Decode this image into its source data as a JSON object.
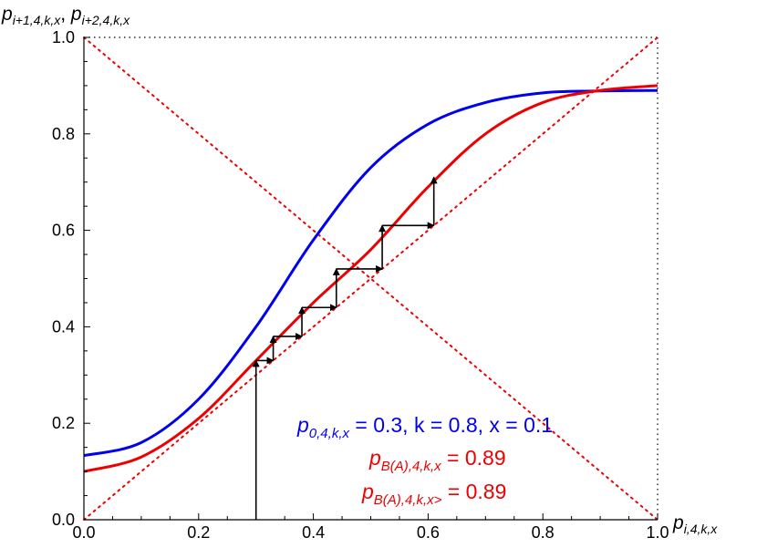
{
  "chart_data": {
    "type": "line",
    "xlabel": "p_{i,4,k,x}",
    "ylabel": "p_{i+1,4,k,x}, p_{i+2,4,k,x}",
    "xlim": [
      0.0,
      1.0
    ],
    "ylim": [
      0.0,
      1.0
    ],
    "x_ticks": [
      "0.0",
      "0.2",
      "0.4",
      "0.6",
      "0.8",
      "1.0"
    ],
    "y_ticks": [
      "0.0",
      "0.2",
      "0.4",
      "0.6",
      "0.8",
      "1.0"
    ],
    "grid": false,
    "colors": {
      "blue_curve": "#0000ee",
      "red_curve": "#ee0000",
      "arrows": "#000000",
      "reference_lines": "#ee0000"
    },
    "x": [
      0.0,
      0.1,
      0.2,
      0.3,
      0.4,
      0.5,
      0.6,
      0.7,
      0.8,
      0.9,
      1.0
    ],
    "series": [
      {
        "values": [
          0.133,
          0.16,
          0.25,
          0.4,
          0.58,
          0.73,
          0.82,
          0.865,
          0.885,
          0.889,
          0.89
        ]
      },
      {
        "values": [
          0.1,
          0.13,
          0.21,
          0.33,
          0.45,
          0.56,
          0.69,
          0.8,
          0.865,
          0.89,
          0.9
        ]
      }
    ],
    "reference_lines": [
      {
        "style": "dotted",
        "from": [
          0.0,
          0.0
        ],
        "to": [
          1.0,
          1.0
        ]
      },
      {
        "style": "dotted",
        "from": [
          0.0,
          1.0
        ],
        "to": [
          1.0,
          0.0
        ]
      }
    ],
    "cobweb_points": [
      [
        0.3,
        0.0
      ],
      [
        0.3,
        0.33
      ],
      [
        0.33,
        0.33
      ],
      [
        0.33,
        0.38
      ],
      [
        0.38,
        0.38
      ],
      [
        0.38,
        0.44
      ],
      [
        0.44,
        0.44
      ],
      [
        0.44,
        0.52
      ],
      [
        0.52,
        0.52
      ],
      [
        0.52,
        0.61
      ],
      [
        0.61,
        0.61
      ],
      [
        0.61,
        0.71
      ]
    ],
    "annotations": {
      "line1": {
        "p": "p",
        "sub": "0,4,k,x",
        "rest": " = 0.3, k = 0.8, x = 0.1"
      },
      "line2": {
        "p": "p",
        "sub": "B(A),4,k,x",
        "rest": " = 0.89"
      },
      "line3": {
        "p": "p",
        "sub": "B(A),4,k,x>",
        "rest": " = 0.89"
      }
    },
    "axis_text": {
      "y_p1": "p",
      "y_sub1": "i+1,4,k,x",
      "y_sep": ", ",
      "y_p2": "p",
      "y_sub2": "i+2,4,k,x",
      "x_p": "p",
      "x_sub": "i,4,k,x"
    }
  }
}
